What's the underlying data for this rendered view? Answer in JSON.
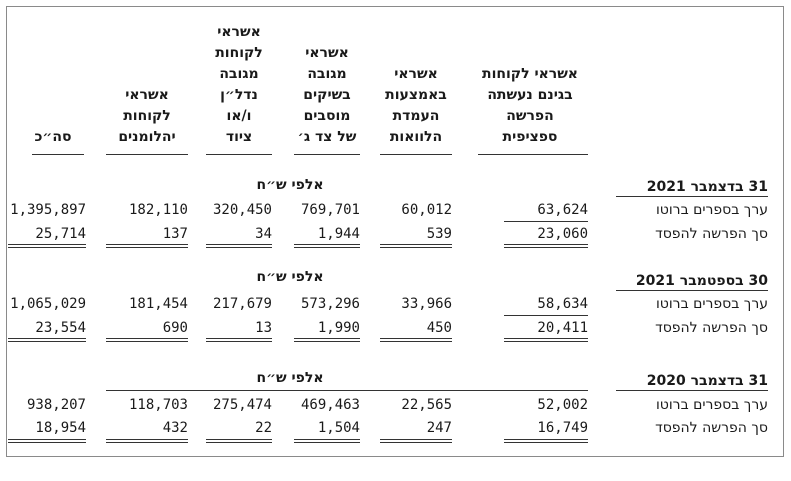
{
  "columns": [
    {
      "key": "specific",
      "lines": [
        "אשראי לקוחות",
        "בגינם נעשתה",
        "הפרשה",
        "ספציפית"
      ]
    },
    {
      "key": "loans",
      "lines": [
        "אשראי",
        "באמצעות",
        "העמדת",
        "הלוואות"
      ]
    },
    {
      "key": "checks",
      "lines": [
        "אשראי",
        "מגובה",
        "בשיקים",
        "מוסבים",
        "של צד ג׳"
      ]
    },
    {
      "key": "realestate",
      "lines": [
        "אשראי",
        "לקוחות",
        "מגובה",
        "נדל״ן",
        "ו/או",
        "ציוד"
      ]
    },
    {
      "key": "private",
      "lines": [
        "אשראי",
        "לקוחות",
        "יהלומנים"
      ]
    },
    {
      "key": "total",
      "lines": [
        "סה״כ"
      ]
    }
  ],
  "sections": [
    {
      "title": "31 בדצמבר 2021",
      "unit": "אלפי ש״ח",
      "rows": [
        {
          "label": "ערך בספרים ברוטו",
          "values": [
            "63,624",
            "60,012",
            "769,701",
            "320,450",
            "182,110",
            "1,395,897"
          ]
        },
        {
          "label": "סך הפרשה להפסד",
          "values": [
            "23,060",
            "539",
            "1,944",
            "34",
            "137",
            "25,714"
          ]
        }
      ]
    },
    {
      "title": "30 בספטמבר 2021",
      "unit": "אלפי ש״ח",
      "rows": [
        {
          "label": "ערך בספרים ברוטו",
          "values": [
            "58,634",
            "33,966",
            "573,296",
            "217,679",
            "181,454",
            "1,065,029"
          ]
        },
        {
          "label": "סך הפרשה להפסד",
          "values": [
            "20,411",
            "450",
            "1,990",
            "13",
            "690",
            "23,554"
          ]
        }
      ]
    },
    {
      "title": "31 בדצמבר 2020",
      "unit": "אלפי ש״ח",
      "rows": [
        {
          "label": "ערך בספרים ברוטו",
          "values": [
            "52,002",
            "22,565",
            "469,463",
            "275,474",
            "118,703",
            "938,207"
          ]
        },
        {
          "label": "סך הפרשה להפסד",
          "values": [
            "16,749",
            "247",
            "1,504",
            "22",
            "432",
            "18,954"
          ]
        }
      ]
    }
  ]
}
